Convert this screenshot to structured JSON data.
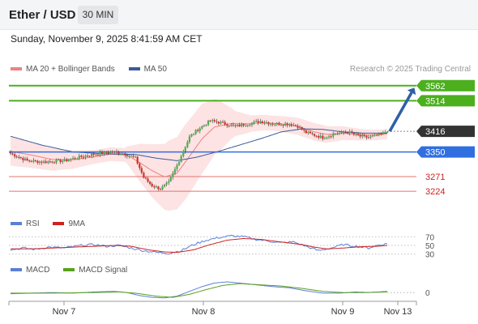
{
  "header": {
    "title": "Ether / USD",
    "timeframe": "30 MIN",
    "timestamp": "Sunday, November 9, 2025 8:41:59 AM CET"
  },
  "credit": "Research © 2025 Trading Central",
  "colors": {
    "bollinger_band": "#fcd9d9",
    "ma20": "#f08080",
    "ma50": "#3c5a99",
    "resistance": "#4caf1e",
    "support": "#2f6fe0",
    "pivot_lines": "#e57373",
    "current_price": "#333333",
    "candle_up": "#4caf50",
    "candle_down": "#d93025",
    "rsi": "#5b7fd6",
    "rsi_ma": "#cc2222",
    "macd": "#5b7fd6",
    "macd_signal": "#5aa01e",
    "arrow": "#2f5fa8"
  },
  "chart_data": [
    {
      "type": "candlestick",
      "indicators": [
        "MA 20 + Bollinger Bands",
        "MA 50"
      ],
      "legend": [
        {
          "label": "MA 20 + Bollinger Bands",
          "color": "#f08080"
        },
        {
          "label": "MA 50",
          "color": "#3c5a99"
        }
      ],
      "ylim": [
        3170,
        3590
      ],
      "x_ticks": [
        "Nov 7",
        "Nov 8",
        "Nov 9",
        "Nov 13"
      ],
      "levels": [
        {
          "value": 3562,
          "label": "3562",
          "kind": "resistance"
        },
        {
          "value": 3514,
          "label": "3514",
          "kind": "resistance"
        },
        {
          "value": 3416,
          "label": "3416",
          "kind": "current"
        },
        {
          "value": 3350,
          "label": "3350",
          "kind": "support"
        },
        {
          "value": 3271,
          "label": "3271",
          "kind": "pivot"
        },
        {
          "value": 3224,
          "label": "3224",
          "kind": "pivot"
        }
      ],
      "forecast_arrow": {
        "from": 3416,
        "to": 3540
      },
      "price_keys": [
        [
          0,
          3345
        ],
        [
          8,
          3322
        ],
        [
          16,
          3318
        ],
        [
          26,
          3322
        ],
        [
          34,
          3335
        ],
        [
          40,
          3342
        ],
        [
          48,
          3350
        ],
        [
          54,
          3346
        ],
        [
          60,
          3330
        ],
        [
          64,
          3268
        ],
        [
          68,
          3242
        ],
        [
          72,
          3232
        ],
        [
          76,
          3252
        ],
        [
          80,
          3308
        ],
        [
          86,
          3398
        ],
        [
          90,
          3422
        ],
        [
          96,
          3450
        ],
        [
          102,
          3442
        ],
        [
          108,
          3432
        ],
        [
          114,
          3440
        ],
        [
          120,
          3448
        ],
        [
          126,
          3440
        ],
        [
          134,
          3440
        ],
        [
          138,
          3432
        ],
        [
          142,
          3412
        ],
        [
          150,
          3396
        ],
        [
          156,
          3408
        ],
        [
          162,
          3414
        ],
        [
          168,
          3400
        ],
        [
          172,
          3396
        ],
        [
          178,
          3406
        ],
        [
          181,
          3418
        ]
      ],
      "ma20_keys": [
        [
          0,
          3352
        ],
        [
          10,
          3340
        ],
        [
          20,
          3326
        ],
        [
          30,
          3325
        ],
        [
          40,
          3334
        ],
        [
          48,
          3343
        ],
        [
          56,
          3340
        ],
        [
          62,
          3316
        ],
        [
          68,
          3290
        ],
        [
          74,
          3270
        ],
        [
          80,
          3282
        ],
        [
          86,
          3336
        ],
        [
          92,
          3392
        ],
        [
          98,
          3430
        ],
        [
          106,
          3441
        ],
        [
          114,
          3440
        ],
        [
          122,
          3444
        ],
        [
          130,
          3440
        ],
        [
          138,
          3432
        ],
        [
          146,
          3414
        ],
        [
          152,
          3406
        ],
        [
          160,
          3410
        ],
        [
          168,
          3405
        ],
        [
          176,
          3404
        ],
        [
          181,
          3408
        ]
      ],
      "band_width_keys": [
        [
          0,
          46
        ],
        [
          20,
          36
        ],
        [
          40,
          22
        ],
        [
          55,
          22
        ],
        [
          62,
          60
        ],
        [
          68,
          85
        ],
        [
          76,
          112
        ],
        [
          84,
          120
        ],
        [
          92,
          112
        ],
        [
          100,
          82
        ],
        [
          108,
          40
        ],
        [
          116,
          26
        ],
        [
          126,
          24
        ],
        [
          140,
          28
        ],
        [
          150,
          28
        ],
        [
          160,
          22
        ],
        [
          170,
          18
        ],
        [
          181,
          16
        ]
      ],
      "ma50_keys": [
        [
          0,
          3400
        ],
        [
          15,
          3372
        ],
        [
          30,
          3350
        ],
        [
          45,
          3344
        ],
        [
          60,
          3342
        ],
        [
          70,
          3330
        ],
        [
          80,
          3322
        ],
        [
          90,
          3334
        ],
        [
          100,
          3352
        ],
        [
          110,
          3372
        ],
        [
          120,
          3392
        ],
        [
          130,
          3414
        ],
        [
          140,
          3424
        ],
        [
          150,
          3422
        ],
        [
          160,
          3414
        ],
        [
          170,
          3410
        ],
        [
          181,
          3410
        ]
      ]
    },
    {
      "type": "line",
      "legend": [
        {
          "label": "RSI",
          "color": "#5b7fd6"
        },
        {
          "label": "9MA",
          "color": "#cc2222"
        }
      ],
      "ylim": [
        22,
        78
      ],
      "levels": [
        {
          "value": 70,
          "label": "70"
        },
        {
          "value": 50,
          "label": "50"
        },
        {
          "value": 30,
          "label": "30"
        }
      ],
      "rsi_keys": [
        [
          0,
          40
        ],
        [
          6,
          44
        ],
        [
          12,
          41
        ],
        [
          18,
          46
        ],
        [
          26,
          44
        ],
        [
          34,
          50
        ],
        [
          40,
          52
        ],
        [
          46,
          48
        ],
        [
          52,
          50
        ],
        [
          58,
          44
        ],
        [
          64,
          38
        ],
        [
          70,
          34
        ],
        [
          76,
          32
        ],
        [
          82,
          38
        ],
        [
          88,
          52
        ],
        [
          94,
          62
        ],
        [
          100,
          68
        ],
        [
          106,
          72
        ],
        [
          112,
          70
        ],
        [
          118,
          64
        ],
        [
          124,
          60
        ],
        [
          130,
          56
        ],
        [
          136,
          58
        ],
        [
          142,
          48
        ],
        [
          148,
          38
        ],
        [
          154,
          44
        ],
        [
          160,
          52
        ],
        [
          166,
          48
        ],
        [
          172,
          44
        ],
        [
          176,
          50
        ],
        [
          181,
          54
        ]
      ],
      "ma_keys": [
        [
          0,
          42
        ],
        [
          10,
          42
        ],
        [
          20,
          44
        ],
        [
          30,
          46
        ],
        [
          40,
          48
        ],
        [
          50,
          50
        ],
        [
          58,
          48
        ],
        [
          66,
          40
        ],
        [
          74,
          35
        ],
        [
          80,
          34
        ],
        [
          88,
          40
        ],
        [
          96,
          52
        ],
        [
          104,
          62
        ],
        [
          112,
          66
        ],
        [
          120,
          64
        ],
        [
          130,
          58
        ],
        [
          140,
          52
        ],
        [
          146,
          46
        ],
        [
          152,
          42
        ],
        [
          160,
          44
        ],
        [
          168,
          47
        ],
        [
          176,
          48
        ],
        [
          181,
          50
        ]
      ]
    },
    {
      "type": "line",
      "legend": [
        {
          "label": "MACD",
          "color": "#5b7fd6"
        },
        {
          "label": "MACD Signal",
          "color": "#5aa01e"
        }
      ],
      "ylim": [
        -12,
        22
      ],
      "levels": [
        {
          "value": 0,
          "label": "0"
        }
      ],
      "macd_keys": [
        [
          0,
          -2
        ],
        [
          10,
          -1
        ],
        [
          20,
          0
        ],
        [
          30,
          -1
        ],
        [
          40,
          1
        ],
        [
          50,
          2
        ],
        [
          56,
          0
        ],
        [
          62,
          -5
        ],
        [
          68,
          -8
        ],
        [
          74,
          -9
        ],
        [
          80,
          -6
        ],
        [
          86,
          2
        ],
        [
          92,
          10
        ],
        [
          98,
          16
        ],
        [
          104,
          18
        ],
        [
          110,
          16
        ],
        [
          118,
          13
        ],
        [
          126,
          10
        ],
        [
          134,
          8
        ],
        [
          142,
          3
        ],
        [
          150,
          -1
        ],
        [
          158,
          -1
        ],
        [
          166,
          1
        ],
        [
          172,
          0
        ],
        [
          181,
          2
        ]
      ],
      "signal_keys": [
        [
          0,
          -1
        ],
        [
          20,
          -1
        ],
        [
          40,
          0
        ],
        [
          52,
          1
        ],
        [
          60,
          -1
        ],
        [
          70,
          -6
        ],
        [
          78,
          -8
        ],
        [
          86,
          -3
        ],
        [
          94,
          5
        ],
        [
          102,
          12
        ],
        [
          110,
          15
        ],
        [
          120,
          13
        ],
        [
          130,
          11
        ],
        [
          140,
          7
        ],
        [
          150,
          2
        ],
        [
          160,
          0
        ],
        [
          170,
          0
        ],
        [
          181,
          1
        ]
      ]
    }
  ]
}
